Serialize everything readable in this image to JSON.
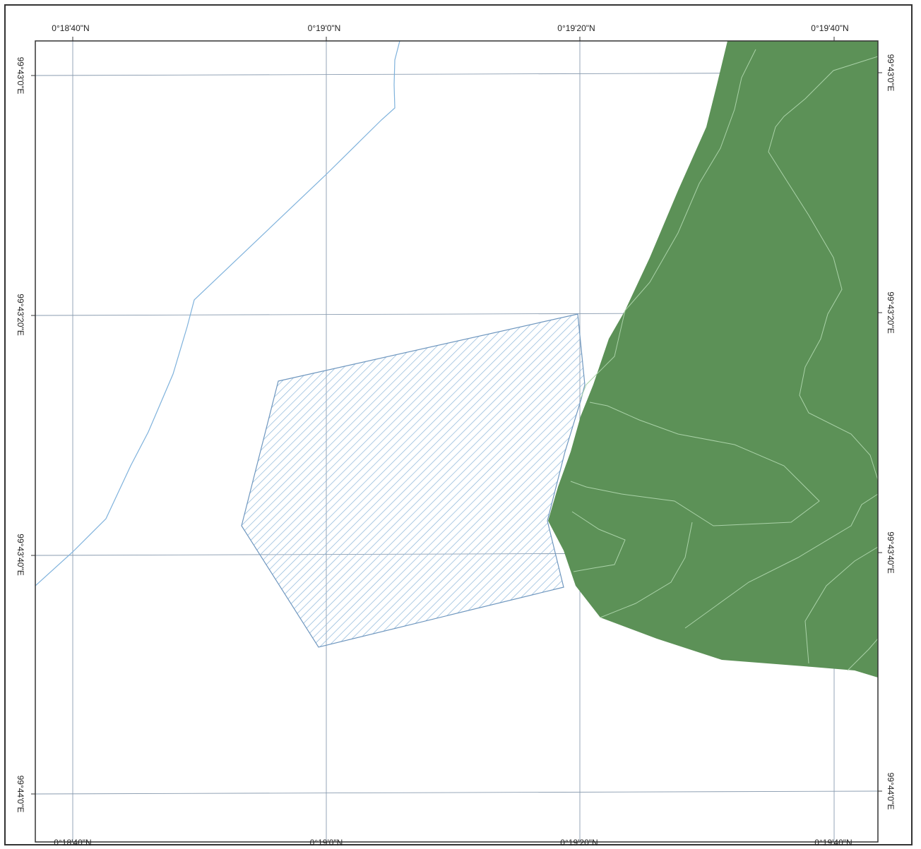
{
  "map": {
    "graticule_labels": {
      "top": [
        "0°18'40\"N",
        "0°19'0\"N",
        "0°19'20\"N",
        "0°19'40\"N"
      ],
      "bottom": [
        "0°18'40\"N",
        "0°19'0\"N",
        "0°19'20\"N",
        "0°19'40\"N"
      ],
      "left": [
        "99°43'0\"E",
        "99°43'20\"E",
        "99°43'40\"E",
        "99°44'0\"E"
      ],
      "right": [
        "99°43'0\"E",
        "99°43'20\"E",
        "99°43'40\"E",
        "99°44'0\"E"
      ]
    },
    "colors": {
      "forest_fill": "#5c9157",
      "contour_line": "#a9d1a7",
      "river_line": "#7fb2dc",
      "hatch_line": "#8bb5d9",
      "parcel_outline": "#6f97bf",
      "grid_line": "#8a9cb0",
      "frame_line": "#333333"
    },
    "layers": [
      "graticule-grid",
      "river-line",
      "hatched-parcel",
      "forest-area",
      "contour-lines"
    ]
  }
}
